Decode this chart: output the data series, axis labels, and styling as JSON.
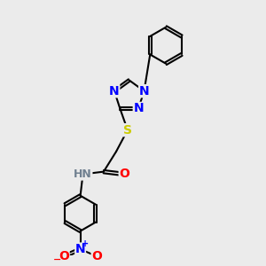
{
  "bg_color": "#ebebeb",
  "bond_color": "#000000",
  "bond_width": 1.5,
  "atom_colors": {
    "N": "#0000ff",
    "O": "#ff0000",
    "S": "#cccc00",
    "H": "#708090",
    "C": "#000000"
  },
  "font_size_atom": 10,
  "font_size_small": 9
}
